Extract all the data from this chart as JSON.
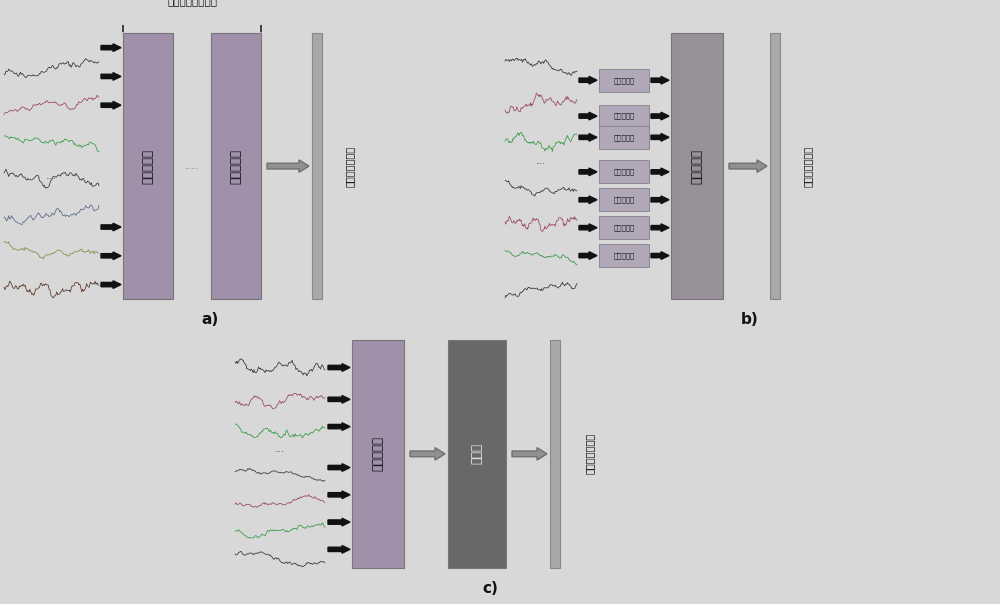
{
  "bg_color": "#d8d8d8",
  "lstm_color": "#a090aa",
  "lstm_color2": "#989098",
  "output_color": "#686868",
  "bar_color": "#a0a0a0",
  "bar_color_thin": "#b0b0b0",
  "arrow_black": "#111111",
  "arrow_gray": "#909090",
  "text_dark": "#111111",
  "brace_label": "长短期记忆层堆栈",
  "lstm_label": "长短期记忆",
  "output_label": "输出层",
  "eeg_label": "脑电图特征表示",
  "label_a": "a)",
  "label_b": "b)",
  "label_c": "c)"
}
